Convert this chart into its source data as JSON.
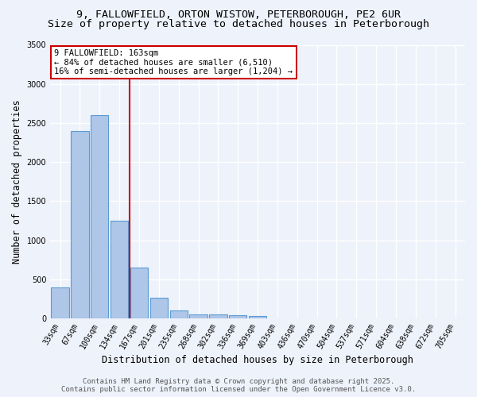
{
  "title_line1": "9, FALLOWFIELD, ORTON WISTOW, PETERBOROUGH, PE2 6UR",
  "title_line2": "Size of property relative to detached houses in Peterborough",
  "xlabel": "Distribution of detached houses by size in Peterborough",
  "ylabel": "Number of detached properties",
  "bar_labels": [
    "33sqm",
    "67sqm",
    "100sqm",
    "134sqm",
    "167sqm",
    "201sqm",
    "235sqm",
    "268sqm",
    "302sqm",
    "336sqm",
    "369sqm",
    "403sqm",
    "436sqm",
    "470sqm",
    "504sqm",
    "537sqm",
    "571sqm",
    "604sqm",
    "638sqm",
    "672sqm",
    "705sqm"
  ],
  "bar_values": [
    400,
    2400,
    2600,
    1250,
    650,
    260,
    100,
    55,
    55,
    40,
    30,
    0,
    0,
    0,
    0,
    0,
    0,
    0,
    0,
    0,
    0
  ],
  "bar_color": "#aec6e8",
  "bar_edgecolor": "#5b9bd5",
  "property_size_index": 4,
  "red_line_color": "#cc0000",
  "annotation_text": "9 FALLOWFIELD: 163sqm\n← 84% of detached houses are smaller (6,510)\n16% of semi-detached houses are larger (1,204) →",
  "annotation_box_edgecolor": "#cc0000",
  "annotation_box_facecolor": "#ffffff",
  "ylim": [
    0,
    3500
  ],
  "yticks": [
    0,
    500,
    1000,
    1500,
    2000,
    2500,
    3000,
    3500
  ],
  "footer_line1": "Contains HM Land Registry data © Crown copyright and database right 2025.",
  "footer_line2": "Contains public sector information licensed under the Open Government Licence v3.0.",
  "bg_color": "#eef2fb",
  "grid_color": "#ffffff",
  "title_fontsize": 9.5,
  "axis_label_fontsize": 8.5,
  "tick_fontsize": 7,
  "annotation_fontsize": 7.5,
  "footer_fontsize": 6.5
}
